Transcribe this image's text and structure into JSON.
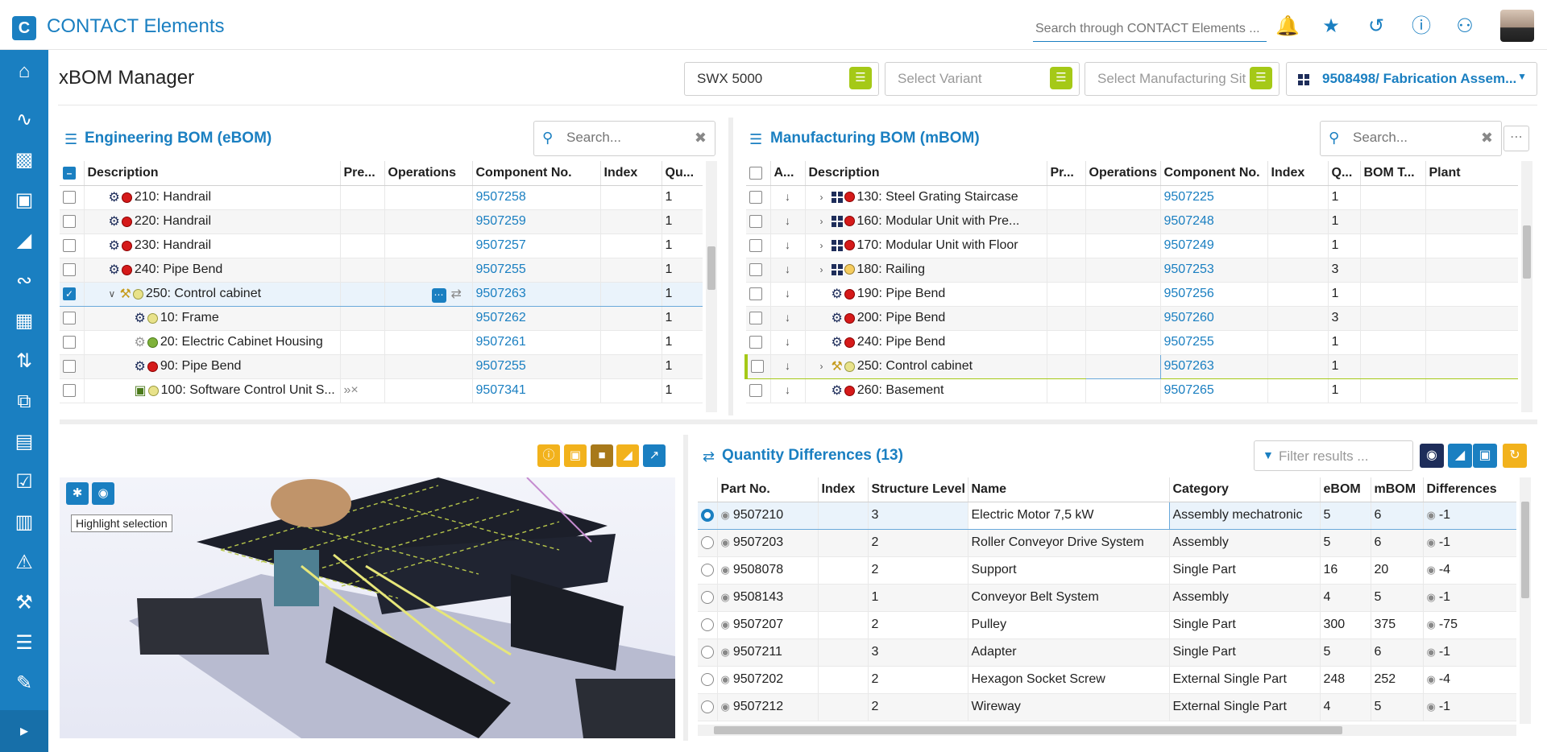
{
  "app": {
    "title": "CONTACT Elements",
    "logo_letter": "C",
    "search_placeholder": "Search through CONTACT Elements ..."
  },
  "topbar_icons": [
    "bell-icon",
    "star-icon",
    "history-icon",
    "info-icon",
    "users-icon"
  ],
  "sidebar": [
    "home-icon",
    "activity-icon",
    "cubes-icon",
    "document-icon",
    "part-icon",
    "signal-icon",
    "grid-icon",
    "sync-icon",
    "connect-icon",
    "window-icon",
    "checkbox-icon",
    "calendar-icon",
    "warning-icon",
    "wrench-icon",
    "list-icon",
    "edit-list-icon"
  ],
  "page": {
    "title": "xBOM Manager",
    "product": "SWX 5000",
    "variant_placeholder": "Select Variant",
    "site_placeholder": "Select Manufacturing Sit",
    "context": "9508498/ Fabrication Assem..."
  },
  "ebom": {
    "title": "Engineering BOM (eBOM)",
    "search_placeholder": "Search...",
    "columns": [
      "Description",
      "Pre...",
      "Operations",
      "Component No.",
      "Index",
      "Qu..."
    ],
    "rows": [
      {
        "desc": "210: Handrail",
        "status": "red",
        "icon": "gear",
        "comp": "9507258",
        "qty": "1",
        "level": 1
      },
      {
        "desc": "220: Handrail",
        "status": "red",
        "icon": "gear",
        "comp": "9507259",
        "qty": "1",
        "level": 1
      },
      {
        "desc": "230: Handrail",
        "status": "red",
        "icon": "gear",
        "comp": "9507257",
        "qty": "1",
        "level": 1
      },
      {
        "desc": "240: Pipe Bend",
        "status": "red",
        "icon": "gear",
        "comp": "9507255",
        "qty": "1",
        "level": 1
      },
      {
        "desc": "250: Control cabinet",
        "status": "yellow",
        "icon": "assy",
        "comp": "9507263",
        "qty": "1",
        "level": 0,
        "selected": true,
        "expanded": true
      },
      {
        "desc": "10: Frame",
        "status": "yellow",
        "icon": "gear",
        "comp": "9507262",
        "qty": "1",
        "level": 2
      },
      {
        "desc": "20: Electric Cabinet Housing",
        "status": "green",
        "icon": "gear-grey",
        "comp": "9507261",
        "qty": "1",
        "level": 2
      },
      {
        "desc": "90: Pipe Bend",
        "status": "red",
        "icon": "gear",
        "comp": "9507255",
        "qty": "1",
        "level": 2
      },
      {
        "desc": "100: Software Control Unit S...",
        "status": "yellow",
        "icon": "software",
        "comp": "9507341",
        "qty": "1",
        "level": 2,
        "pre": "»×"
      }
    ]
  },
  "mbom": {
    "title": "Manufacturing BOM (mBOM)",
    "search_placeholder": "Search...",
    "columns": [
      "A...",
      "Description",
      "Pr...",
      "Operations",
      "Component No.",
      "Index",
      "Q...",
      "BOM T...",
      "Plant"
    ],
    "rows": [
      {
        "desc": "130: Steel Grating Staircase",
        "status": "red",
        "icon": "module",
        "comp": "9507225",
        "qty": "1",
        "expandable": true
      },
      {
        "desc": "160: Modular Unit with Pre...",
        "status": "red",
        "icon": "module",
        "comp": "9507248",
        "qty": "1",
        "expandable": true
      },
      {
        "desc": "170: Modular Unit with Floor",
        "status": "red",
        "icon": "module",
        "comp": "9507249",
        "qty": "1",
        "expandable": true
      },
      {
        "desc": "180: Railing",
        "status": "orange",
        "icon": "module",
        "comp": "9507253",
        "qty": "3",
        "expandable": true
      },
      {
        "desc": "190: Pipe Bend",
        "status": "red",
        "icon": "gear",
        "comp": "9507256",
        "qty": "1",
        "expandable": false
      },
      {
        "desc": "200: Pipe Bend",
        "status": "red",
        "icon": "gear",
        "comp": "9507260",
        "qty": "3",
        "expandable": false
      },
      {
        "desc": "240: Pipe Bend",
        "status": "red",
        "icon": "gear",
        "comp": "9507255",
        "qty": "1",
        "expandable": false
      },
      {
        "desc": "250: Control cabinet",
        "status": "yellow",
        "icon": "assy",
        "comp": "9507263",
        "qty": "1",
        "expandable": true,
        "highlight": true
      },
      {
        "desc": "260: Basement",
        "status": "red",
        "icon": "gear",
        "comp": "9507265",
        "qty": "1",
        "expandable": false
      }
    ]
  },
  "viewer": {
    "tooltip": "Highlight selection",
    "toolbar": [
      "info-icon",
      "note-icon",
      "box-icon",
      "part-icon",
      "external-link-icon"
    ]
  },
  "qd": {
    "title": "Quantity Differences (13)",
    "filter_placeholder": "Filter results ...",
    "columns": [
      "Part No.",
      "Index",
      "Structure Level",
      "Name",
      "Category",
      "eBOM",
      "mBOM",
      "Differences"
    ],
    "rows": [
      {
        "part": "9507210",
        "level": "3",
        "name": "Electric Motor 7,5 kW",
        "cat": "Assembly mechatronic",
        "ebom": "5",
        "mbom": "6",
        "diff": "-1",
        "selected": true
      },
      {
        "part": "9507203",
        "level": "2",
        "name": "Roller Conveyor Drive System",
        "cat": "Assembly",
        "ebom": "5",
        "mbom": "6",
        "diff": "-1"
      },
      {
        "part": "9508078",
        "level": "2",
        "name": "Support",
        "cat": "Single Part",
        "ebom": "16",
        "mbom": "20",
        "diff": "-4"
      },
      {
        "part": "9508143",
        "level": "1",
        "name": "Conveyor Belt System",
        "cat": "Assembly",
        "ebom": "4",
        "mbom": "5",
        "diff": "-1"
      },
      {
        "part": "9507207",
        "level": "2",
        "name": "Pulley",
        "cat": "Single Part",
        "ebom": "300",
        "mbom": "375",
        "diff": "-75"
      },
      {
        "part": "9507211",
        "level": "3",
        "name": "Adapter",
        "cat": "Single Part",
        "ebom": "5",
        "mbom": "6",
        "diff": "-1"
      },
      {
        "part": "9507202",
        "level": "2",
        "name": "Hexagon Socket Screw",
        "cat": "External Single Part",
        "ebom": "248",
        "mbom": "252",
        "diff": "-4"
      },
      {
        "part": "9507212",
        "level": "2",
        "name": "Wireway",
        "cat": "External Single Part",
        "ebom": "4",
        "mbom": "5",
        "diff": "-1"
      }
    ]
  },
  "colors": {
    "brand": "#1a7fc1",
    "accent_green": "#a5c917",
    "accent_orange": "#f2b21c"
  }
}
